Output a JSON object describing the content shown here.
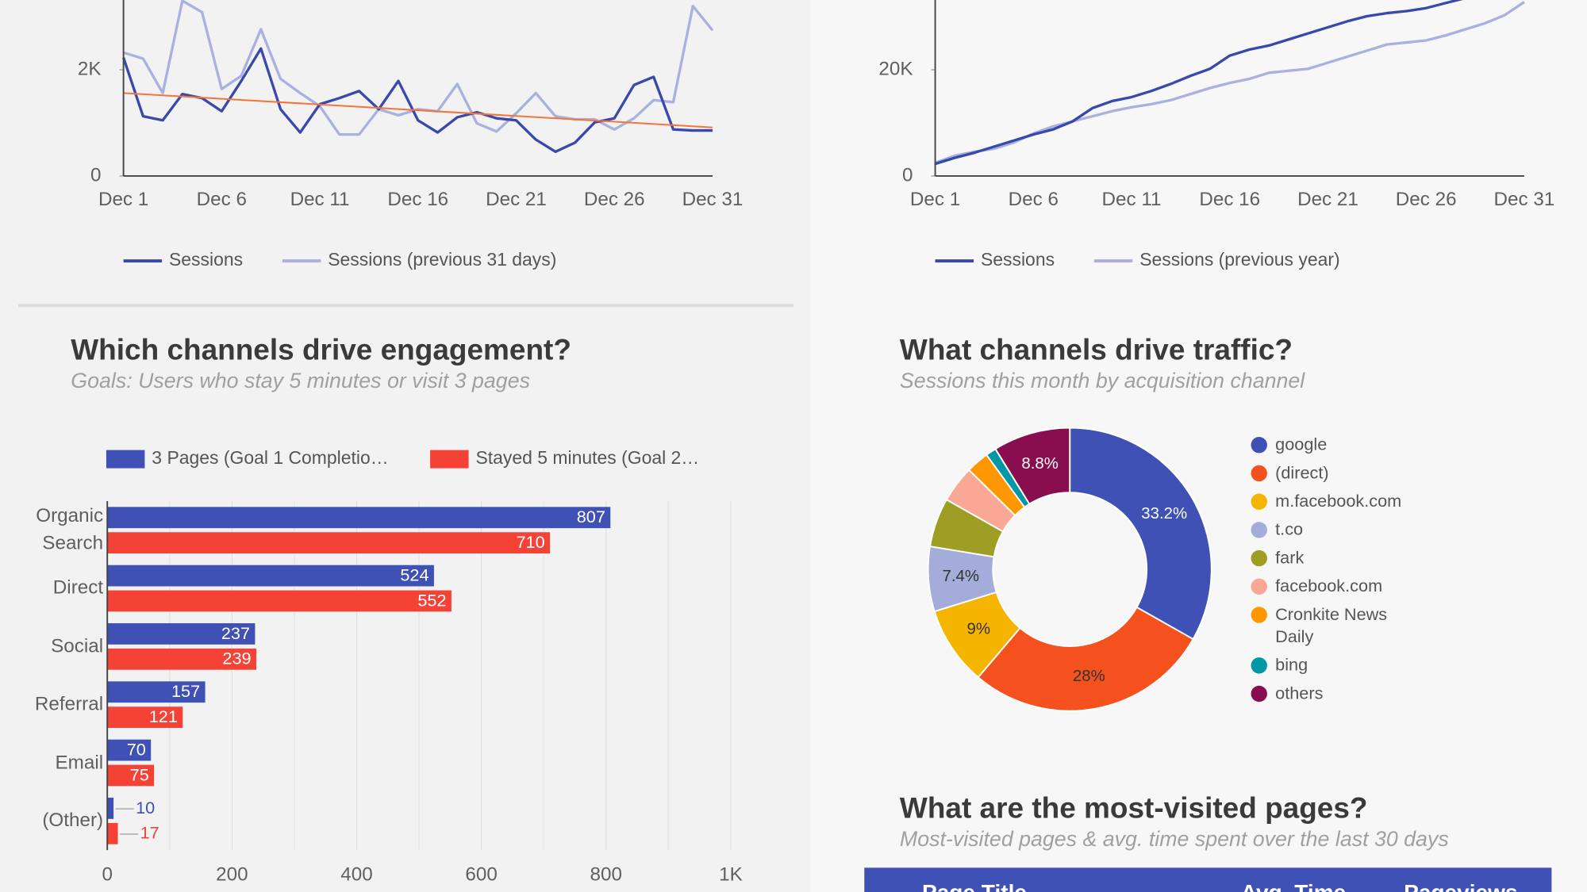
{
  "chart_data": [
    {
      "type": "line",
      "categories": [
        "Dec 1",
        null,
        null,
        null,
        null,
        "Dec 6",
        null,
        null,
        null,
        null,
        "Dec 11",
        null,
        null,
        null,
        null,
        "Dec 16",
        null,
        null,
        null,
        null,
        "Dec 21",
        null,
        null,
        null,
        null,
        "Dec 26",
        null,
        null,
        null,
        null,
        "Dec 31"
      ],
      "series": [
        {
          "name": "Sessions",
          "color": "#3949ab",
          "values": [
            2229,
            1124,
            1048,
            1543,
            1467,
            1219,
            1790,
            2400,
            1257,
            819,
            1352,
            1467,
            1600,
            1257,
            1790,
            1048,
            819,
            1105,
            1200,
            1086,
            1048,
            686,
            457,
            629,
            1010,
            1086,
            1714,
            1867,
            876,
            857,
            857
          ]
        },
        {
          "name": "Sessions (previous 31 days)",
          "color": "#aab0e0",
          "values": [
            2324,
            2210,
            1562,
            3300,
            3086,
            1638,
            1886,
            2762,
            1829,
            1562,
            1314,
            781,
            781,
            1257,
            1143,
            1257,
            1219,
            1733,
            990,
            838,
            1181,
            1562,
            1124,
            1067,
            1067,
            876,
            1086,
            1429,
            1390,
            3200,
            2743
          ]
        }
      ],
      "trendline": {
        "color": "#f4743b",
        "values": [
          1562,
          914
        ]
      },
      "ylim": [
        0,
        3300
      ],
      "yticks": [
        0,
        {
          "value": 2000,
          "label": "2K"
        }
      ],
      "legend": "bottom"
    },
    {
      "type": "line",
      "categories": [
        "Dec 1",
        null,
        null,
        null,
        null,
        "Dec 6",
        null,
        null,
        null,
        null,
        "Dec 11",
        null,
        null,
        null,
        null,
        "Dec 16",
        null,
        null,
        null,
        null,
        "Dec 21",
        null,
        null,
        null,
        null,
        "Dec 26",
        null,
        null,
        null,
        null,
        "Dec 31"
      ],
      "series": [
        {
          "name": "Sessions",
          "color": "#3949ab",
          "values": [
            2286,
            3429,
            4381,
            5524,
            6667,
            7810,
            8762,
            10286,
            12762,
            14095,
            14857,
            16000,
            17333,
            18857,
            20190,
            22667,
            23810,
            24571,
            25714,
            26857,
            28000,
            29143,
            30095,
            30667,
            31048,
            31619,
            32571,
            33500,
            null,
            null,
            null
          ]
        },
        {
          "name": "Sessions (previous year)",
          "color": "#aab0e0",
          "values": [
            2476,
            3810,
            4571,
            5143,
            6286,
            8000,
            9333,
            10286,
            11238,
            12190,
            12952,
            13524,
            14286,
            15429,
            16571,
            17524,
            18286,
            19429,
            19810,
            20190,
            21333,
            22476,
            23619,
            24762,
            25143,
            25524,
            26476,
            27619,
            28762,
            30286,
            32762
          ]
        }
      ],
      "ylim": [
        0,
        33000
      ],
      "yticks": [
        0,
        {
          "value": 20000,
          "label": "20K"
        }
      ],
      "legend": "bottom"
    },
    {
      "type": "bar",
      "orientation": "horizontal",
      "title": "Which channels drive engagement?",
      "subtitle": "Goals: Users who stay 5 minutes or visit 3 pages",
      "categories": [
        "Organic Search",
        "Direct",
        "Social",
        "Referral",
        "Email",
        "(Other)"
      ],
      "series": [
        {
          "name": "3 Pages (Goal 1 Completio…",
          "color": "#3f51b5",
          "values": [
            807,
            524,
            237,
            157,
            70,
            10
          ]
        },
        {
          "name": "Stayed 5 minutes (Goal 2…",
          "color": "#f44336",
          "values": [
            710,
            552,
            239,
            121,
            75,
            17
          ]
        }
      ],
      "xlim": [
        0,
        1000
      ],
      "xticks": [
        0,
        200,
        400,
        600,
        800,
        {
          "value": 1000,
          "label": "1K"
        }
      ],
      "minor_xticks": [
        100,
        300,
        500,
        700,
        900
      ],
      "grid": true,
      "legend": "top"
    },
    {
      "type": "pie",
      "donut": true,
      "title": "What channels drive traffic?",
      "subtitle": "Sessions this month by acquisition channel",
      "categories": [
        "google",
        "(direct)",
        "m.facebook.com",
        "t.co",
        "fark",
        "facebook.com",
        "Cronkite News Daily",
        "bing",
        "others"
      ],
      "values": [
        33.2,
        28,
        9,
        7.4,
        5.6,
        4.2,
        2.6,
        1.2,
        8.8
      ],
      "value_labels": [
        "33.2%",
        "28%",
        "9%",
        "7.4%",
        null,
        null,
        null,
        null,
        "8.8%"
      ],
      "colors": [
        "#3f51b5",
        "#f4511e",
        "#f4b400",
        "#a4acd9",
        "#9e9d24",
        "#f9a896",
        "#ff9800",
        "#0097a7",
        "#880e4f"
      ],
      "legend": "right"
    }
  ],
  "table": {
    "title": "What are the most-visited pages?",
    "subtitle": "Most-visited pages & avg. time spent over the last 30 days",
    "columns": [
      "Page Title",
      "Avg. Time",
      "Pageviews"
    ]
  }
}
